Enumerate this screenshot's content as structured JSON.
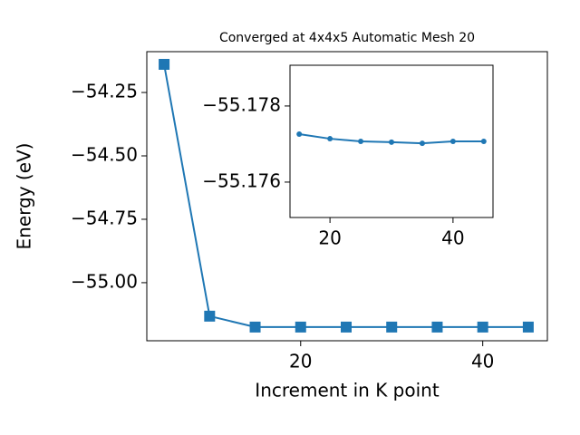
{
  "chart_data": [
    {
      "type": "line",
      "title": "Converged at 4x4x5 Automatic Mesh 20",
      "xlabel": "Increment in K point",
      "ylabel": "Energy (eV)",
      "x": [
        5,
        10,
        15,
        20,
        25,
        30,
        35,
        40,
        45
      ],
      "series": [
        {
          "color": "#1f77b4",
          "marker": "square",
          "values": [
            -54.139,
            -55.132,
            -55.175,
            -55.175,
            -55.175,
            -55.175,
            -55.175,
            -55.175,
            -55.175
          ]
        }
      ],
      "xlim": [
        3.1,
        47.1
      ],
      "ylim": [
        -55.229,
        -54.089
      ],
      "xticks": [
        20,
        40
      ],
      "yticks": [
        {
          "value": -55.0,
          "label": "−55.00"
        },
        {
          "value": -54.75,
          "label": "−54.75"
        },
        {
          "value": -54.5,
          "label": "−54.50"
        },
        {
          "value": -54.25,
          "label": "−54.25"
        }
      ]
    },
    {
      "type": "line",
      "x": [
        15,
        20,
        25,
        30,
        35,
        40,
        45
      ],
      "series": [
        {
          "color": "#1f77b4",
          "marker": "circle",
          "values": [
            -55.17726,
            -55.17714,
            -55.17707,
            -55.17705,
            -55.17702,
            -55.17707,
            -55.17707
          ]
        }
      ],
      "xlim": [
        13.5,
        46.5
      ],
      "ylim": [
        -55.17507,
        -55.17907
      ],
      "xticks": [
        20,
        40
      ],
      "yticks": [
        {
          "value": -55.178,
          "label": "−55.178"
        },
        {
          "value": -55.176,
          "label": "−55.176"
        }
      ]
    }
  ]
}
